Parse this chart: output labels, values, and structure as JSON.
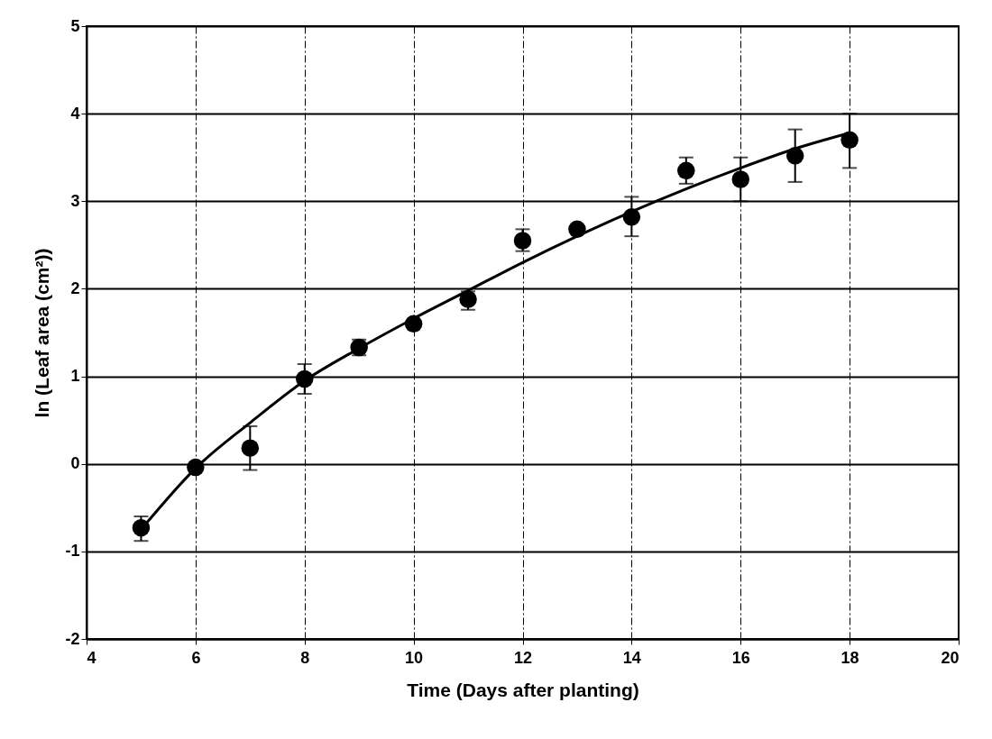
{
  "chart_data": {
    "type": "scatter",
    "xlabel": "Time (Days after planting)",
    "ylabel": "ln (Leaf area (cm²))",
    "xlim": [
      4,
      20
    ],
    "xticks": [
      4,
      6,
      8,
      10,
      12,
      14,
      16,
      18,
      20
    ],
    "ylim": [
      -2,
      5
    ],
    "yticks": [
      -2,
      -1,
      0,
      1,
      2,
      3,
      4,
      5
    ],
    "grid": true,
    "series": [
      {
        "color": "#000000",
        "marker": "circle",
        "x": [
          5,
          6,
          7,
          8,
          9,
          10,
          11,
          12,
          13,
          14,
          15,
          16,
          17,
          18
        ],
        "values": [
          -0.73,
          -0.04,
          0.18,
          0.97,
          1.33,
          1.6,
          1.88,
          2.55,
          2.68,
          2.82,
          3.35,
          3.25,
          3.52,
          3.7
        ],
        "errors": [
          [
            -0.88,
            -0.6
          ],
          null,
          [
            -0.07,
            0.43
          ],
          [
            0.8,
            1.14
          ],
          [
            1.24,
            1.42
          ],
          null,
          [
            1.76,
            1.97
          ],
          [
            2.43,
            2.68
          ],
          null,
          [
            2.6,
            3.05
          ],
          [
            3.2,
            3.5
          ],
          [
            3.0,
            3.5
          ],
          [
            3.22,
            3.82
          ],
          [
            3.38,
            4.0
          ]
        ]
      },
      {
        "type": "line",
        "color": "#000000",
        "marker": "none",
        "x": [
          5,
          6,
          7,
          8,
          9,
          10,
          11,
          12,
          13,
          14,
          15,
          16,
          17,
          18
        ],
        "values": [
          -0.75,
          -0.05,
          0.47,
          0.95,
          1.32,
          1.66,
          1.98,
          2.3,
          2.6,
          2.88,
          3.14,
          3.38,
          3.6,
          3.78
        ]
      }
    ]
  }
}
